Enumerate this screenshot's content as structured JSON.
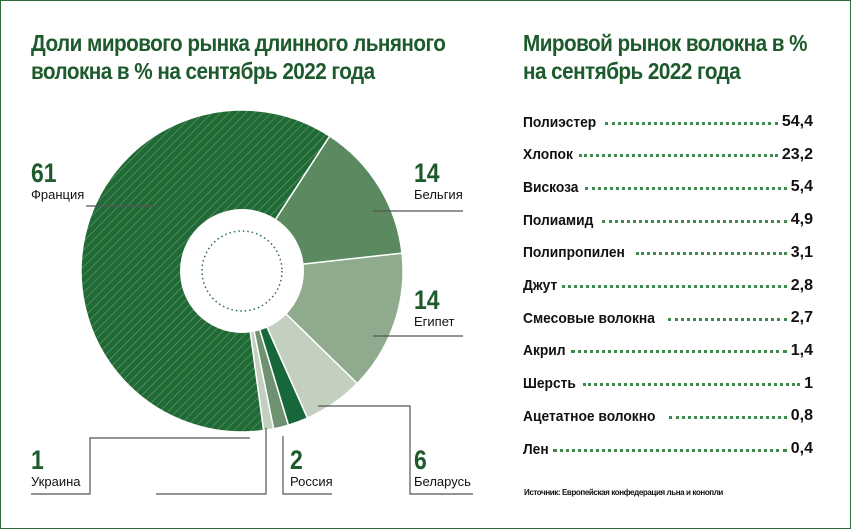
{
  "left_title": "Доли мирового рынка длинного льняного волокна в % на сентябрь 2022 года",
  "right_title": "Мировой рынок волокна в % на сентябрь 2022 года",
  "chart_data": [
    {
      "type": "pie",
      "title": "Доли мирового рынка длинного льняного волокна в % на сентябрь 2022 года",
      "slices": [
        {
          "label": "Бельгия",
          "value": 14,
          "color": "#5b8a61"
        },
        {
          "label": "Египет",
          "value": 14,
          "color": "#8faa8c"
        },
        {
          "label": "Беларусь",
          "value": 6,
          "color": "#c3cfbf"
        },
        {
          "label": "Россия",
          "value": 2,
          "color": "#16683a"
        },
        {
          "label": "",
          "value": 1.5,
          "color": "#6e9170"
        },
        {
          "label": "Украина",
          "value": 1,
          "color": "#c3cfbf"
        },
        {
          "label": "Франция",
          "value": 61,
          "color": "#1f6a35"
        }
      ]
    },
    {
      "type": "table",
      "title": "Мировой рынок волокна в % на сентябрь 2022 года",
      "rows": [
        {
          "label": "Полиэстер",
          "value": "54,4"
        },
        {
          "label": "Хлопок",
          "value": "23,2"
        },
        {
          "label": "Вискоза",
          "value": "5,4"
        },
        {
          "label": "Полиамид",
          "value": "4,9"
        },
        {
          "label": "Полипропилен",
          "value": "3,1"
        },
        {
          "label": "Джут",
          "value": "2,8"
        },
        {
          "label": "Смесовые волокна",
          "value": "2,7"
        },
        {
          "label": "Акрил",
          "value": "1,4"
        },
        {
          "label": "Шерсть",
          "value": "1"
        },
        {
          "label": "Ацетатное волокно",
          "value": "0,8"
        },
        {
          "label": "Лен",
          "value": "0,4"
        }
      ]
    }
  ],
  "labels": {
    "france": {
      "value": "61",
      "name": "Франция"
    },
    "belgium": {
      "value": "14",
      "name": "Бельгия"
    },
    "egypt": {
      "value": "14",
      "name": "Египет"
    },
    "ukraine": {
      "value": "1",
      "name": "Украина"
    },
    "russia": {
      "value": "2",
      "name": "Россия"
    },
    "belarus": {
      "value": "6",
      "name": "Беларусь"
    }
  },
  "source": "Источник: Европейская конфедерация льна и конопли"
}
